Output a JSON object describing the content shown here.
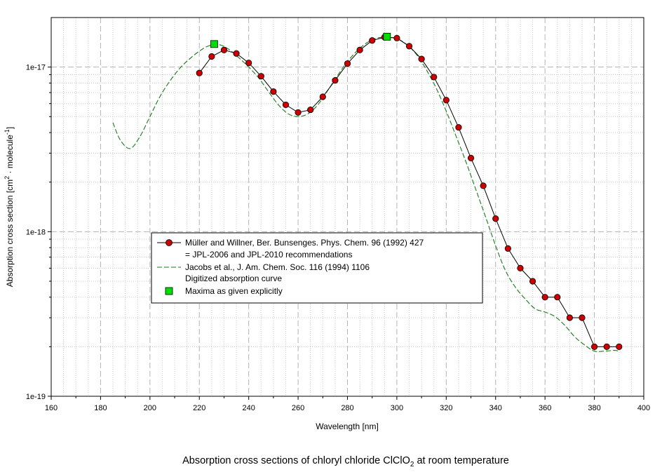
{
  "chart_data": {
    "type": "line",
    "y_scale": "log",
    "xlabel": "Wavelength [nm]",
    "ylabel_parts": [
      "Absorption cross section [cm",
      "2",
      " · molecule",
      "-1",
      "]"
    ],
    "xlim": [
      160,
      400
    ],
    "ylim": [
      1e-19,
      2e-17
    ],
    "x_ticks": [
      160,
      180,
      200,
      220,
      240,
      260,
      280,
      300,
      320,
      340,
      360,
      380,
      400
    ],
    "x_tick_labels": [
      "160",
      "180",
      "200",
      "220",
      "240",
      "260",
      "280",
      "300",
      "320",
      "340",
      "360",
      "380",
      "400"
    ],
    "y_ticks": [
      1e-19,
      1e-18,
      1e-17
    ],
    "y_tick_labels": [
      "1e-19",
      "1e-18",
      "1e-17"
    ],
    "grid": true,
    "legend_position": "center-left",
    "series": [
      {
        "name": "Müller and Willner, Ber. Bunsenges. Phys. Chem. 96 (1992) 427",
        "name_line2": "= JPL-2006 and JPL-2010 recommendations",
        "style": "line-markers",
        "color": "#000000",
        "marker_color": "#cc0000",
        "x": [
          220,
          225,
          230,
          235,
          240,
          245,
          250,
          255,
          260,
          265,
          270,
          275,
          280,
          285,
          290,
          295,
          300,
          305,
          310,
          315,
          320,
          325,
          330,
          335,
          340,
          345,
          350,
          355,
          360,
          365,
          370,
          375,
          380,
          385,
          390
        ],
        "y": [
          9.2e-18,
          1.16e-17,
          1.27e-17,
          1.21e-17,
          1.06e-17,
          8.8e-18,
          7.1e-18,
          5.9e-18,
          5.3e-18,
          5.5e-18,
          6.6e-18,
          8.3e-18,
          1.05e-17,
          1.27e-17,
          1.45e-17,
          1.52e-17,
          1.5e-17,
          1.34e-17,
          1.12e-17,
          8.7e-18,
          6.3e-18,
          4.3e-18,
          2.8e-18,
          1.9e-18,
          1.2e-18,
          7.9e-19,
          6e-19,
          5e-19,
          4e-19,
          4e-19,
          3e-19,
          3e-19,
          2e-19,
          2e-19,
          2e-19
        ]
      },
      {
        "name": "Jacobs et al., J. Am. Chem. Soc. 116 (1994) 1106",
        "name_line2": "Digitized absorption curve",
        "style": "dashed",
        "color": "#1a7a1a",
        "x": [
          185,
          188,
          192,
          196,
          200,
          204,
          208,
          212,
          216,
          220,
          224,
          228,
          232,
          236,
          240,
          244,
          248,
          252,
          256,
          260,
          264,
          268,
          272,
          276,
          280,
          284,
          288,
          292,
          296,
          300,
          304,
          308,
          312,
          316,
          320,
          324,
          328,
          332,
          336,
          340,
          344,
          348,
          352,
          356,
          360,
          364,
          368,
          372,
          376,
          380,
          384,
          388,
          390
        ],
        "y": [
          4.6e-18,
          3.6e-18,
          3.2e-18,
          3.8e-18,
          5e-18,
          6.6e-18,
          8.2e-18,
          9.8e-18,
          1.12e-17,
          1.25e-17,
          1.35e-17,
          1.37e-17,
          1.28e-17,
          1.14e-17,
          1e-17,
          8.6e-18,
          7.1e-18,
          5.9e-18,
          5.2e-18,
          5e-18,
          5.2e-18,
          5.9e-18,
          7.2e-18,
          8.9e-18,
          1.08e-17,
          1.26e-17,
          1.41e-17,
          1.5e-17,
          1.52e-17,
          1.49e-17,
          1.37e-17,
          1.19e-17,
          9.6e-18,
          7.4e-18,
          5.4e-18,
          3.8e-18,
          2.65e-18,
          1.8e-18,
          1.22e-18,
          8.2e-19,
          5.8e-19,
          4.6e-19,
          3.9e-19,
          3.4e-19,
          3.25e-19,
          3.05e-19,
          2.7e-19,
          2.3e-19,
          2.05e-19,
          1.88e-19,
          1.88e-19,
          1.9e-19,
          1.88e-19
        ]
      },
      {
        "name": "Maxima as given explicitly",
        "style": "markers",
        "color": "#00dd00",
        "x": [
          226,
          296
        ],
        "y": [
          1.38e-17,
          1.53e-17
        ]
      }
    ],
    "caption_parts": [
      "Absorption cross sections of chloryl chloride ClClO",
      "2",
      " at room temperature"
    ]
  }
}
